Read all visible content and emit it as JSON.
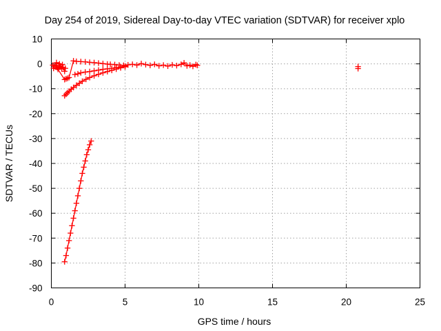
{
  "chart_data": {
    "type": "scatter",
    "title": "Day 254 of 2019, Sidereal Day-to-day VTEC variation (SDTVAR) for receiver xplo",
    "xlabel": "GPS time / hours",
    "ylabel": "SDTVAR / TECUs",
    "xlim": [
      0,
      25
    ],
    "ylim": [
      -90,
      10
    ],
    "xticks": [
      "0",
      "5",
      "10",
      "15",
      "20",
      "25"
    ],
    "yticks": [
      "10",
      "0",
      "-10",
      "-20",
      "-30",
      "-40",
      "-50",
      "-60",
      "-70",
      "-80",
      "-90"
    ],
    "grid": true,
    "marker": "+",
    "color": "#ff0000",
    "series": [
      {
        "points": [
          [
            0.1,
            -0.5
          ],
          [
            0.2,
            -1.0
          ],
          [
            0.3,
            -0.7
          ],
          [
            0.4,
            -1.5
          ],
          [
            0.5,
            -1.2
          ],
          [
            0.6,
            -0.8
          ],
          [
            0.7,
            -2.0
          ],
          [
            0.8,
            -1.4
          ],
          [
            0.35,
            0.5
          ],
          [
            0.55,
            0.0
          ],
          [
            0.75,
            -0.3
          ],
          [
            0.9,
            -3.0
          ],
          [
            0.95,
            -1.8
          ],
          [
            0.15,
            -1.8
          ],
          [
            0.45,
            -2.2
          ],
          [
            0.9,
            -6.3
          ],
          [
            1.0,
            -6.0
          ],
          [
            1.1,
            -5.8
          ],
          [
            1.2,
            -5.5
          ],
          [
            1.5,
            1.2
          ],
          [
            1.7,
            1.0
          ],
          [
            2.0,
            0.9
          ],
          [
            2.3,
            0.8
          ],
          [
            2.6,
            0.6
          ],
          [
            2.9,
            0.5
          ],
          [
            3.2,
            0.3
          ],
          [
            3.5,
            0.1
          ],
          [
            3.8,
            -0.1
          ],
          [
            4.0,
            -0.2
          ],
          [
            4.3,
            -0.3
          ],
          [
            4.6,
            -0.5
          ],
          [
            4.9,
            -0.6
          ],
          [
            1.6,
            -4.3
          ],
          [
            1.8,
            -4.0
          ],
          [
            2.0,
            -3.6
          ],
          [
            2.3,
            -3.3
          ],
          [
            2.6,
            -3.1
          ],
          [
            2.9,
            -2.8
          ],
          [
            3.2,
            -2.5
          ],
          [
            3.5,
            -2.2
          ],
          [
            3.8,
            -2.0
          ],
          [
            4.1,
            -1.8
          ],
          [
            4.4,
            -1.5
          ],
          [
            4.7,
            -1.2
          ],
          [
            5.0,
            -0.9
          ],
          [
            0.9,
            -12.8
          ],
          [
            1.0,
            -12.2
          ],
          [
            1.1,
            -11.6
          ],
          [
            1.2,
            -11.0
          ],
          [
            1.35,
            -10.2
          ],
          [
            1.5,
            -9.5
          ],
          [
            1.7,
            -8.6
          ],
          [
            1.9,
            -7.8
          ],
          [
            2.1,
            -7.0
          ],
          [
            2.35,
            -6.2
          ],
          [
            2.6,
            -5.5
          ],
          [
            2.9,
            -4.8
          ],
          [
            3.2,
            -4.2
          ],
          [
            3.5,
            -3.6
          ],
          [
            3.8,
            -3.1
          ],
          [
            4.1,
            -2.6
          ],
          [
            4.4,
            -2.1
          ],
          [
            4.7,
            -1.6
          ],
          [
            5.0,
            -1.2
          ],
          [
            5.2,
            -0.4
          ],
          [
            5.5,
            -0.2
          ],
          [
            5.8,
            -0.5
          ],
          [
            6.1,
            0.1
          ],
          [
            6.4,
            -0.3
          ],
          [
            6.7,
            -0.6
          ],
          [
            7.0,
            -0.2
          ],
          [
            7.3,
            -0.8
          ],
          [
            7.6,
            -0.5
          ],
          [
            7.9,
            -0.9
          ],
          [
            8.2,
            -0.4
          ],
          [
            8.5,
            -0.7
          ],
          [
            8.8,
            -0.2
          ],
          [
            9.0,
            0.4
          ],
          [
            9.2,
            -0.8
          ],
          [
            9.4,
            -0.5
          ],
          [
            9.6,
            -1.0
          ],
          [
            9.8,
            -0.3
          ],
          [
            9.9,
            -0.6
          ],
          [
            0.9,
            -79.5
          ],
          [
            1.0,
            -77.0
          ],
          [
            1.1,
            -74.0
          ],
          [
            1.2,
            -71.0
          ],
          [
            1.3,
            -68.0
          ],
          [
            1.4,
            -65.0
          ],
          [
            1.5,
            -62.0
          ],
          [
            1.6,
            -59.0
          ],
          [
            1.7,
            -56.0
          ],
          [
            1.8,
            -53.0
          ],
          [
            1.9,
            -50.0
          ],
          [
            2.0,
            -47.0
          ],
          [
            2.1,
            -44.0
          ],
          [
            2.2,
            -41.5
          ],
          [
            2.3,
            -39.0
          ],
          [
            2.4,
            -36.5
          ],
          [
            2.5,
            -34.5
          ],
          [
            2.6,
            -32.5
          ],
          [
            2.7,
            -31.0
          ],
          [
            20.8,
            -1.1
          ],
          [
            20.8,
            -1.9
          ]
        ]
      }
    ]
  }
}
